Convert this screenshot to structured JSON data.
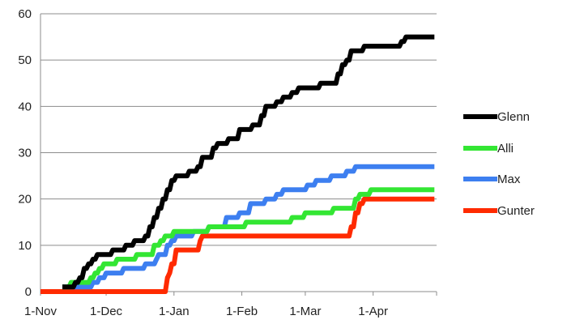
{
  "chart_data": {
    "type": "line",
    "title": "",
    "xlabel": "",
    "ylabel": "",
    "ylim": [
      0,
      60
    ],
    "y_ticks": [
      0,
      10,
      20,
      30,
      40,
      50,
      60
    ],
    "xlim": [
      "2011-11-01",
      "2012-04-30"
    ],
    "x_ticks": [
      {
        "date": "2011-11-01",
        "label": "1-Nov"
      },
      {
        "date": "2011-12-01",
        "label": "1-Dec"
      },
      {
        "date": "2012-01-01",
        "label": "1-Jan"
      },
      {
        "date": "2012-02-01",
        "label": "1-Feb"
      },
      {
        "date": "2012-03-01",
        "label": "1-Mar"
      },
      {
        "date": "2012-04-01",
        "label": "1-Apr"
      }
    ],
    "grid": true,
    "legend": "right",
    "series": [
      {
        "name": "Glenn",
        "color": "#000000",
        "points": [
          [
            "2011-11-11",
            1
          ],
          [
            "2011-11-17",
            2
          ],
          [
            "2011-11-19",
            3
          ],
          [
            "2011-11-21",
            5
          ],
          [
            "2011-11-23",
            6
          ],
          [
            "2011-11-25",
            7
          ],
          [
            "2011-11-27",
            8
          ],
          [
            "2011-12-04",
            9
          ],
          [
            "2011-12-10",
            10
          ],
          [
            "2011-12-14",
            11
          ],
          [
            "2011-12-19",
            12
          ],
          [
            "2011-12-21",
            14
          ],
          [
            "2011-12-23",
            16
          ],
          [
            "2011-12-25",
            18
          ],
          [
            "2011-12-27",
            20
          ],
          [
            "2011-12-29",
            22
          ],
          [
            "2011-12-31",
            24
          ],
          [
            "2012-01-02",
            25
          ],
          [
            "2012-01-08",
            26
          ],
          [
            "2012-01-12",
            27
          ],
          [
            "2012-01-14",
            29
          ],
          [
            "2012-01-19",
            31
          ],
          [
            "2012-01-21",
            32
          ],
          [
            "2012-01-26",
            33
          ],
          [
            "2012-01-31",
            35
          ],
          [
            "2012-02-06",
            36
          ],
          [
            "2012-02-10",
            38
          ],
          [
            "2012-02-12",
            40
          ],
          [
            "2012-02-17",
            41
          ],
          [
            "2012-02-20",
            42
          ],
          [
            "2012-02-24",
            43
          ],
          [
            "2012-02-27",
            44
          ],
          [
            "2012-03-08",
            45
          ],
          [
            "2012-03-16",
            47
          ],
          [
            "2012-03-18",
            49
          ],
          [
            "2012-03-20",
            50
          ],
          [
            "2012-03-22",
            52
          ],
          [
            "2012-03-28",
            53
          ],
          [
            "2012-04-14",
            54
          ],
          [
            "2012-04-16",
            55
          ],
          [
            "2012-04-29",
            55
          ]
        ]
      },
      {
        "name": "Alli",
        "color": "#33e633",
        "points": [
          [
            "2011-11-11",
            1
          ],
          [
            "2011-11-15",
            2
          ],
          [
            "2011-11-24",
            3
          ],
          [
            "2011-11-26",
            4
          ],
          [
            "2011-11-28",
            5
          ],
          [
            "2011-11-30",
            6
          ],
          [
            "2011-12-06",
            7
          ],
          [
            "2011-12-15",
            8
          ],
          [
            "2011-12-23",
            10
          ],
          [
            "2011-12-26",
            11
          ],
          [
            "2011-12-28",
            12
          ],
          [
            "2012-01-01",
            13
          ],
          [
            "2012-01-17",
            14
          ],
          [
            "2012-02-03",
            15
          ],
          [
            "2012-02-24",
            16
          ],
          [
            "2012-03-01",
            17
          ],
          [
            "2012-03-14",
            18
          ],
          [
            "2012-03-24",
            20
          ],
          [
            "2012-03-26",
            21
          ],
          [
            "2012-03-31",
            22
          ],
          [
            "2012-04-29",
            22
          ]
        ]
      },
      {
        "name": "Max",
        "color": "#3d7ff0",
        "points": [
          [
            "2011-11-11",
            1
          ],
          [
            "2011-11-25",
            2
          ],
          [
            "2011-11-28",
            3
          ],
          [
            "2011-12-01",
            4
          ],
          [
            "2011-12-09",
            5
          ],
          [
            "2011-12-19",
            6
          ],
          [
            "2011-12-24",
            7
          ],
          [
            "2011-12-25",
            8
          ],
          [
            "2011-12-29",
            10
          ],
          [
            "2011-12-31",
            11
          ],
          [
            "2012-01-02",
            12
          ],
          [
            "2012-01-10",
            13
          ],
          [
            "2012-01-17",
            14
          ],
          [
            "2012-01-25",
            16
          ],
          [
            "2012-01-31",
            17
          ],
          [
            "2012-02-05",
            19
          ],
          [
            "2012-02-12",
            20
          ],
          [
            "2012-02-17",
            21
          ],
          [
            "2012-02-20",
            22
          ],
          [
            "2012-03-02",
            23
          ],
          [
            "2012-03-06",
            24
          ],
          [
            "2012-03-13",
            25
          ],
          [
            "2012-03-20",
            26
          ],
          [
            "2012-03-24",
            27
          ],
          [
            "2012-04-29",
            27
          ]
        ]
      },
      {
        "name": "Gunter",
        "color": "#ff2a00",
        "points": [
          [
            "2011-11-01",
            0
          ],
          [
            "2011-12-28",
            0
          ],
          [
            "2011-12-29",
            3
          ],
          [
            "2011-12-30",
            4
          ],
          [
            "2011-12-31",
            6
          ],
          [
            "2012-01-02",
            9
          ],
          [
            "2012-01-13",
            11
          ],
          [
            "2012-01-14",
            12
          ],
          [
            "2012-03-20",
            12
          ],
          [
            "2012-03-22",
            14
          ],
          [
            "2012-03-24",
            17
          ],
          [
            "2012-03-26",
            19
          ],
          [
            "2012-03-28",
            20
          ],
          [
            "2012-04-29",
            20
          ]
        ]
      }
    ]
  }
}
